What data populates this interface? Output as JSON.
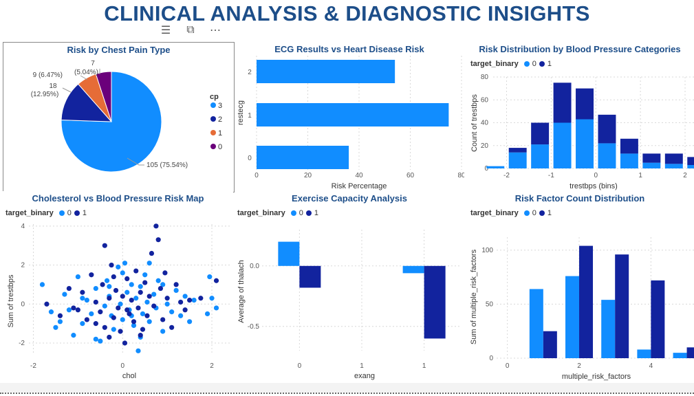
{
  "header": {
    "title": "CLINICAL ANALYSIS & DIAGNOSTIC INSIGHTS",
    "icons": [
      "filter-icon",
      "focus-mode-icon",
      "more-options-icon"
    ]
  },
  "colors": {
    "light": "#118dff",
    "dark": "#12239e",
    "orange": "#e66c37",
    "purple": "#6b007b",
    "title": "#1d4e89"
  },
  "legend": {
    "target_label": "target_binary",
    "v0": "0",
    "v1": "1"
  },
  "chart_data": [
    {
      "id": "pie",
      "type": "pie",
      "title": "Risk by Chest Pain Type",
      "legend_title": "cp",
      "slices": [
        {
          "label": "3",
          "value": 105,
          "text": "105 (75.54%)"
        },
        {
          "label": "2",
          "value": 18,
          "text": "18 (12.95%)"
        },
        {
          "label": "1",
          "value": 9,
          "text": "9 (6.47%)"
        },
        {
          "label": "0",
          "value": 7,
          "text": "7 (5.04%)"
        }
      ]
    },
    {
      "id": "ecg",
      "type": "bar",
      "orientation": "horizontal",
      "title": "ECG Results vs Heart Disease Risk",
      "xlabel": "Risk Percentage",
      "ylabel": "restecg",
      "categories": [
        "0",
        "1",
        "2"
      ],
      "values": [
        36,
        75,
        54
      ],
      "xlim": [
        0,
        80
      ],
      "xticks": [
        "0",
        "20",
        "40",
        "60",
        "80"
      ]
    },
    {
      "id": "bp",
      "type": "bar",
      "stacked": true,
      "title": "Risk Distribution by Blood Pressure Categories",
      "xlabel": "trestbps (bins)",
      "ylabel": "Count of trestbps",
      "bins": [
        -2.25,
        -1.75,
        -1.25,
        -0.75,
        -0.25,
        0.25,
        0.75,
        1.25,
        1.75,
        2.25
      ],
      "series": [
        {
          "name": "0",
          "values": [
            2,
            14,
            21,
            40,
            43,
            22,
            13,
            5,
            4,
            3
          ]
        },
        {
          "name": "1",
          "values": [
            0,
            4,
            19,
            35,
            27,
            25,
            13,
            8,
            9,
            7
          ]
        }
      ],
      "xlim": [
        -2.3,
        2.2
      ],
      "ylim": [
        0,
        80
      ],
      "yticks": [
        "0",
        "20",
        "40",
        "60",
        "80"
      ],
      "xticks": [
        "-2",
        "-1",
        "0",
        "1",
        "2"
      ]
    },
    {
      "id": "scatter",
      "type": "scatter",
      "title": "Cholesterol vs Blood Pressure Risk Map",
      "xlabel": "chol",
      "ylabel": "Sum of trestbps",
      "xlim": [
        -2.1,
        2.4
      ],
      "ylim": [
        -2.6,
        4.1
      ],
      "xticks": [
        "-2",
        "0",
        "2"
      ],
      "yticks": [
        "-2",
        "0",
        "2",
        "4"
      ],
      "series": [
        {
          "name": "0",
          "points": [
            [
              -1.8,
              1.0
            ],
            [
              -1.5,
              -1.2
            ],
            [
              -1.4,
              -0.9
            ],
            [
              -1.3,
              0.5
            ],
            [
              -1.2,
              -0.3
            ],
            [
              -1.0,
              1.4
            ],
            [
              -0.9,
              -1.0
            ],
            [
              -0.8,
              0.2
            ],
            [
              -0.7,
              -0.5
            ],
            [
              -0.6,
              0.8
            ],
            [
              -0.5,
              -1.9
            ],
            [
              -0.4,
              -0.1
            ],
            [
              -0.35,
              1.2
            ],
            [
              -0.3,
              0.4
            ],
            [
              -0.25,
              -0.6
            ],
            [
              -0.2,
              -1.3
            ],
            [
              -0.1,
              1.9
            ],
            [
              -0.05,
              0.0
            ],
            [
              0.0,
              -0.8
            ],
            [
              0.05,
              2.1
            ],
            [
              0.1,
              0.6
            ],
            [
              0.15,
              -0.3
            ],
            [
              0.2,
              1.0
            ],
            [
              0.25,
              -1.1
            ],
            [
              0.3,
              0.3
            ],
            [
              0.35,
              -2.4
            ],
            [
              0.4,
              0.9
            ],
            [
              0.45,
              -0.5
            ],
            [
              0.5,
              1.5
            ],
            [
              0.55,
              0.1
            ],
            [
              0.6,
              -0.9
            ],
            [
              0.7,
              0.5
            ],
            [
              0.75,
              -0.2
            ],
            [
              0.8,
              1.2
            ],
            [
              0.9,
              -1.4
            ],
            [
              1.0,
              0.0
            ],
            [
              1.1,
              -0.4
            ],
            [
              1.2,
              0.7
            ],
            [
              1.3,
              -0.6
            ],
            [
              1.5,
              -0.9
            ],
            [
              1.6,
              0.2
            ],
            [
              1.9,
              -0.5
            ],
            [
              1.95,
              1.4
            ],
            [
              2.0,
              0.3
            ],
            [
              2.1,
              -0.2
            ],
            [
              -1.1,
              -1.6
            ],
            [
              -0.6,
              -1.8
            ],
            [
              0.0,
              1.6
            ],
            [
              0.6,
              2.1
            ],
            [
              0.9,
              1.0
            ],
            [
              -1.6,
              -0.4
            ],
            [
              -0.9,
              0.3
            ],
            [
              0.2,
              -0.6
            ],
            [
              0.4,
              -1.7
            ],
            [
              -0.3,
              0.9
            ],
            [
              1.4,
              0.4
            ]
          ]
        },
        {
          "name": "1",
          "points": [
            [
              -1.7,
              0.0
            ],
            [
              -1.4,
              -0.6
            ],
            [
              -1.2,
              0.8
            ],
            [
              -1.1,
              -0.2
            ],
            [
              -0.9,
              0.6
            ],
            [
              -0.8,
              -0.8
            ],
            [
              -0.7,
              1.5
            ],
            [
              -0.6,
              0.1
            ],
            [
              -0.5,
              -0.4
            ],
            [
              -0.45,
              1.0
            ],
            [
              -0.4,
              -1.2
            ],
            [
              -0.3,
              0.3
            ],
            [
              -0.25,
              2.0
            ],
            [
              -0.2,
              -0.7
            ],
            [
              -0.15,
              0.7
            ],
            [
              -0.1,
              -0.2
            ],
            [
              -0.05,
              -1.4
            ],
            [
              0.0,
              0.4
            ],
            [
              0.05,
              -2.0
            ],
            [
              0.1,
              1.3
            ],
            [
              0.15,
              -0.5
            ],
            [
              0.2,
              0.2
            ],
            [
              0.25,
              -0.9
            ],
            [
              0.3,
              1.7
            ],
            [
              0.35,
              -0.2
            ],
            [
              0.4,
              0.6
            ],
            [
              0.45,
              -1.3
            ],
            [
              0.5,
              1.1
            ],
            [
              0.55,
              -0.6
            ],
            [
              0.6,
              0.4
            ],
            [
              0.65,
              2.6
            ],
            [
              0.7,
              -0.1
            ],
            [
              0.75,
              4.0
            ],
            [
              0.8,
              3.3
            ],
            [
              0.85,
              0.8
            ],
            [
              0.9,
              -0.8
            ],
            [
              1.0,
              0.3
            ],
            [
              1.1,
              -1.2
            ],
            [
              1.2,
              1.0
            ],
            [
              1.3,
              0.1
            ],
            [
              1.4,
              -0.3
            ],
            [
              1.5,
              0.2
            ],
            [
              1.75,
              0.3
            ],
            [
              2.1,
              1.2
            ],
            [
              -0.4,
              3.0
            ],
            [
              -0.2,
              1.4
            ],
            [
              0.4,
              -1.6
            ],
            [
              0.1,
              -0.3
            ],
            [
              -1.0,
              -0.3
            ],
            [
              -0.6,
              -1.0
            ],
            [
              0.95,
              1.6
            ],
            [
              -0.3,
              -1.7
            ]
          ]
        }
      ]
    },
    {
      "id": "exercise",
      "type": "bar",
      "title": "Exercise Capacity Analysis",
      "xlabel": "exang",
      "ylabel": "Average of thalach",
      "categories": [
        "0",
        "1"
      ],
      "series": [
        {
          "name": "0",
          "values": [
            0.2,
            -0.06
          ]
        },
        {
          "name": "1",
          "values": [
            -0.18,
            -0.6
          ]
        }
      ],
      "xlim": [
        -0.3,
        1.3
      ],
      "ylim": [
        -0.7,
        0.3
      ],
      "xticks": [
        "0",
        "1"
      ],
      "yticks": [
        "0.0",
        "-0.5"
      ]
    },
    {
      "id": "riskcount",
      "type": "bar",
      "title": "Risk Factor Count Distribution",
      "xlabel": "multiple_risk_factors",
      "ylabel": "Sum of multiple_risk_factors",
      "categories": [
        "1",
        "2",
        "3",
        "4",
        "5"
      ],
      "series": [
        {
          "name": "0",
          "values": [
            64,
            76,
            54,
            8,
            5
          ]
        },
        {
          "name": "1",
          "values": [
            25,
            104,
            96,
            72,
            10
          ]
        }
      ],
      "xlim": [
        -0.3,
        5.2
      ],
      "ylim": [
        0,
        112
      ],
      "xticks": [
        "0",
        "2",
        "4"
      ],
      "yticks": [
        "0",
        "50",
        "100"
      ]
    }
  ]
}
